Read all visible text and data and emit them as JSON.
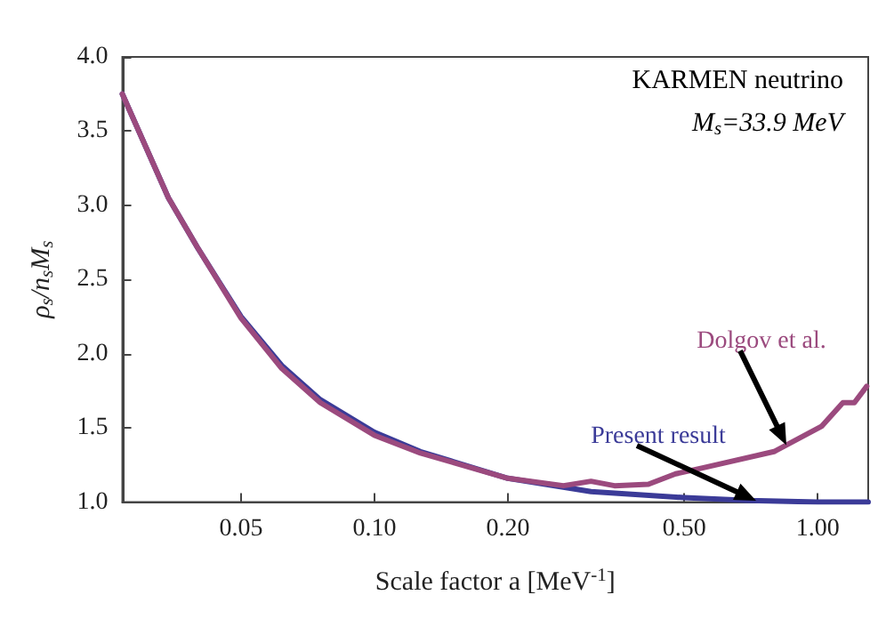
{
  "chart_data": {
    "type": "line",
    "xlabel": "Scale factor a [MeV$^{-1}$]",
    "ylabel": "ρ$_{s}$/n$_{s}$M$_{s}$",
    "log": "x",
    "grid": false,
    "marker": "none",
    "line_style": "solid",
    "xlim": [
      0.027,
      1.3
    ],
    "xticks": [
      {
        "value": 0.05,
        "label": "0.05"
      },
      {
        "value": 0.1,
        "label": "0.10"
      },
      {
        "value": 0.2,
        "label": "0.20"
      },
      {
        "value": 0.5,
        "label": "0.50"
      },
      {
        "value": 1,
        "label": "1.00"
      }
    ],
    "ylim": [
      1,
      4
    ],
    "yticks": [
      {
        "value": 1,
        "label": "1.0"
      },
      {
        "value": 1.5,
        "label": "1.5"
      },
      {
        "value": 2,
        "label": "2.0"
      },
      {
        "value": 2.5,
        "label": "2.5"
      },
      {
        "value": 3,
        "label": "3.0"
      },
      {
        "value": 3.5,
        "label": "3.5"
      },
      {
        "value": 4,
        "label": "4.0"
      }
    ],
    "series": [
      {
        "name": "Present result",
        "color": "#3b3b98",
        "x": [
          0.027,
          0.0343,
          0.0398,
          0.05,
          0.0618,
          0.0755,
          0.1,
          0.127,
          0.2,
          0.308,
          0.5,
          0.7,
          1.0,
          1.3
        ],
        "values": [
          3.75,
          3.05,
          2.72,
          2.25,
          1.92,
          1.69,
          1.47,
          1.34,
          1.16,
          1.07,
          1.03,
          1.01,
          1.0,
          1.0
        ]
      },
      {
        "name": "Dolgov et al.",
        "color": "#9b4a7e",
        "x": [
          0.027,
          0.0343,
          0.0398,
          0.05,
          0.0618,
          0.0755,
          0.1,
          0.127,
          0.2,
          0.267,
          0.308,
          0.348,
          0.415,
          0.478,
          0.55,
          0.797,
          1.02,
          1.14,
          1.21,
          1.29
        ],
        "values": [
          3.75,
          3.05,
          2.72,
          2.24,
          1.9,
          1.67,
          1.45,
          1.33,
          1.16,
          1.11,
          1.14,
          1.11,
          1.12,
          1.19,
          1.23,
          1.34,
          1.51,
          1.67,
          1.67,
          1.78
        ]
      }
    ],
    "annotations": [
      "KARMEN neutrino",
      "M$_{s}$=33.9 MeV"
    ]
  }
}
